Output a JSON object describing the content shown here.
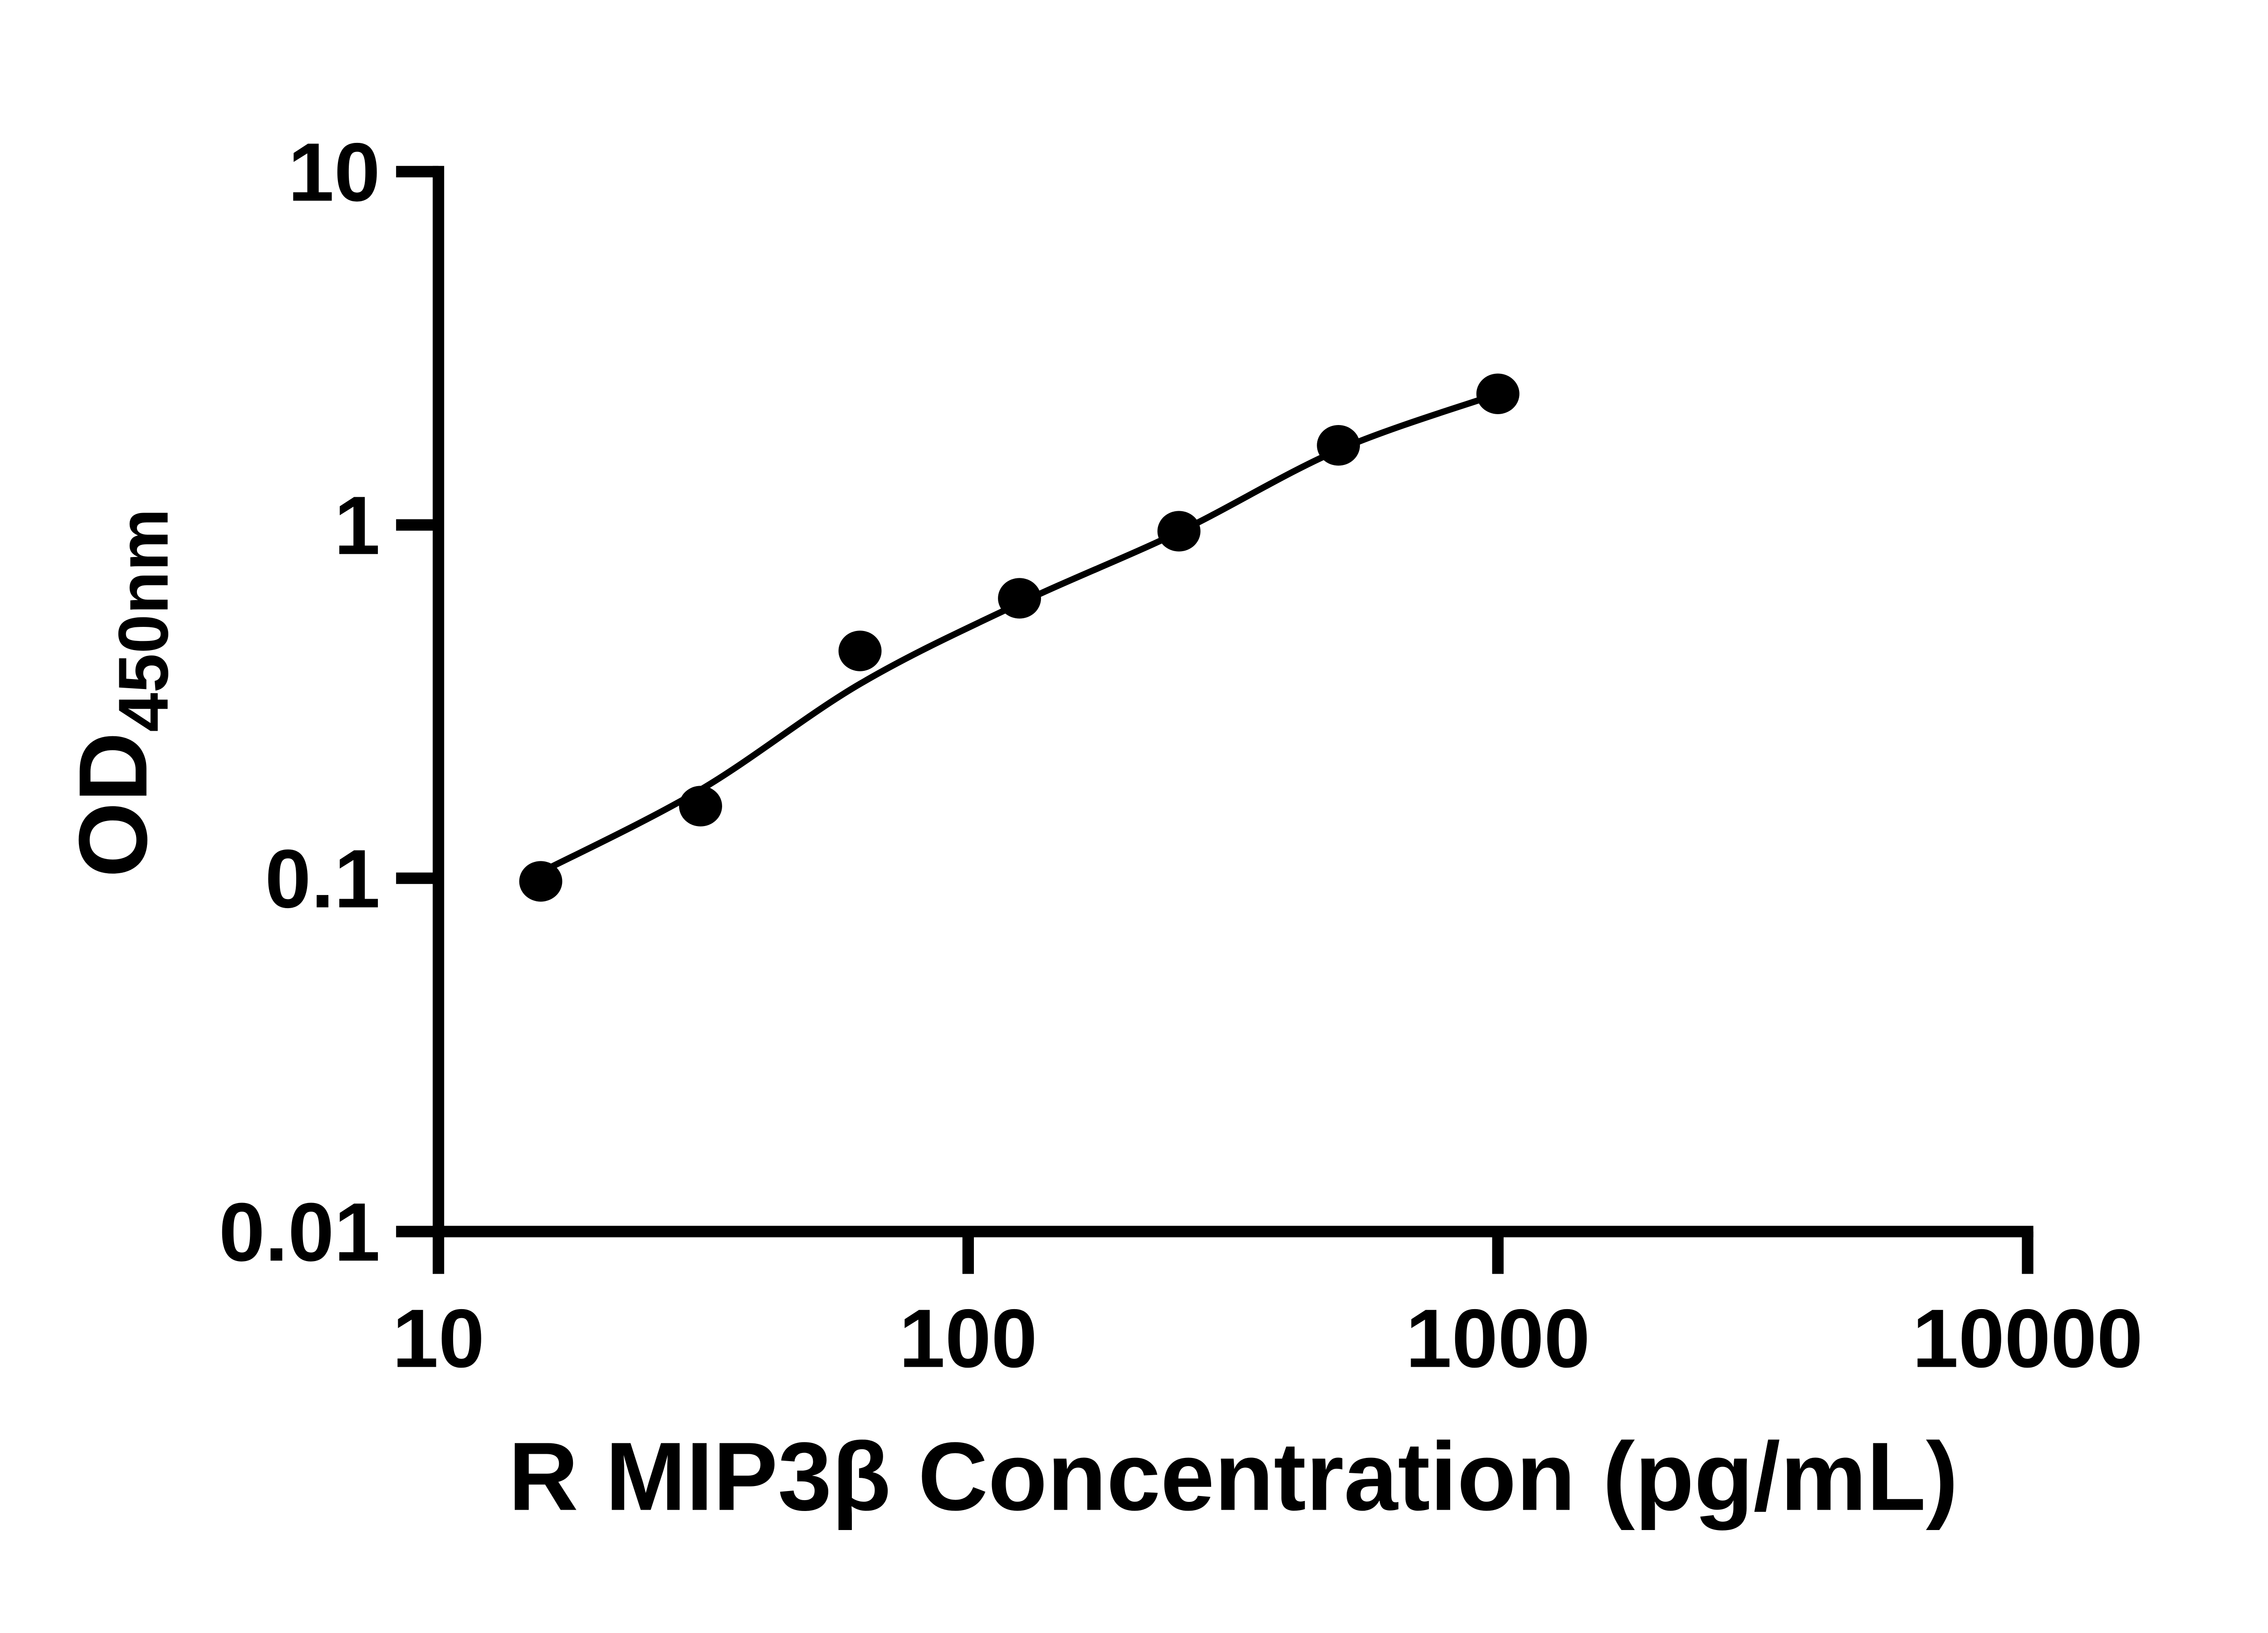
{
  "figure": {
    "background_color": "#ffffff",
    "ink_color": "#000000",
    "description": "ELISA standard curve, log-log scatter plot with fitted line"
  },
  "chart_data": {
    "type": "scatter",
    "title": "",
    "xlabel": "R MIP3β Concentration (pg/mL)",
    "ylabel": "OD450nm",
    "ylabel_main": "OD",
    "ylabel_sub": "450nm",
    "x_scale": "log10",
    "y_scale": "log10",
    "xlim": [
      10,
      10000
    ],
    "ylim": [
      0.01,
      10
    ],
    "x_ticks": [
      10,
      100,
      1000,
      10000
    ],
    "x_tick_labels": [
      "10",
      "100",
      "1000",
      "10000"
    ],
    "y_ticks": [
      0.01,
      0.1,
      1,
      10
    ],
    "y_tick_labels": [
      "0.01",
      "0.1",
      "1",
      "10"
    ],
    "grid": false,
    "legend": null,
    "marker": "filled-circle",
    "series": [
      {
        "name": "R MIP3β standard",
        "color": "#000000",
        "points": [
          {
            "x": 15.6,
            "y": 0.098
          },
          {
            "x": 31.25,
            "y": 0.16
          },
          {
            "x": 62.5,
            "y": 0.44
          },
          {
            "x": 125,
            "y": 0.62
          },
          {
            "x": 250,
            "y": 0.96
          },
          {
            "x": 500,
            "y": 1.68
          },
          {
            "x": 1000,
            "y": 2.35
          }
        ]
      }
    ],
    "fit_curve": {
      "name": "fitted standard curve",
      "color": "#000000",
      "points": [
        {
          "x": 15.6,
          "y": 0.104
        },
        {
          "x": 31.25,
          "y": 0.178
        },
        {
          "x": 62.5,
          "y": 0.355
        },
        {
          "x": 125,
          "y": 0.6
        },
        {
          "x": 250,
          "y": 0.955
        },
        {
          "x": 500,
          "y": 1.63
        },
        {
          "x": 1000,
          "y": 2.35
        }
      ]
    }
  }
}
